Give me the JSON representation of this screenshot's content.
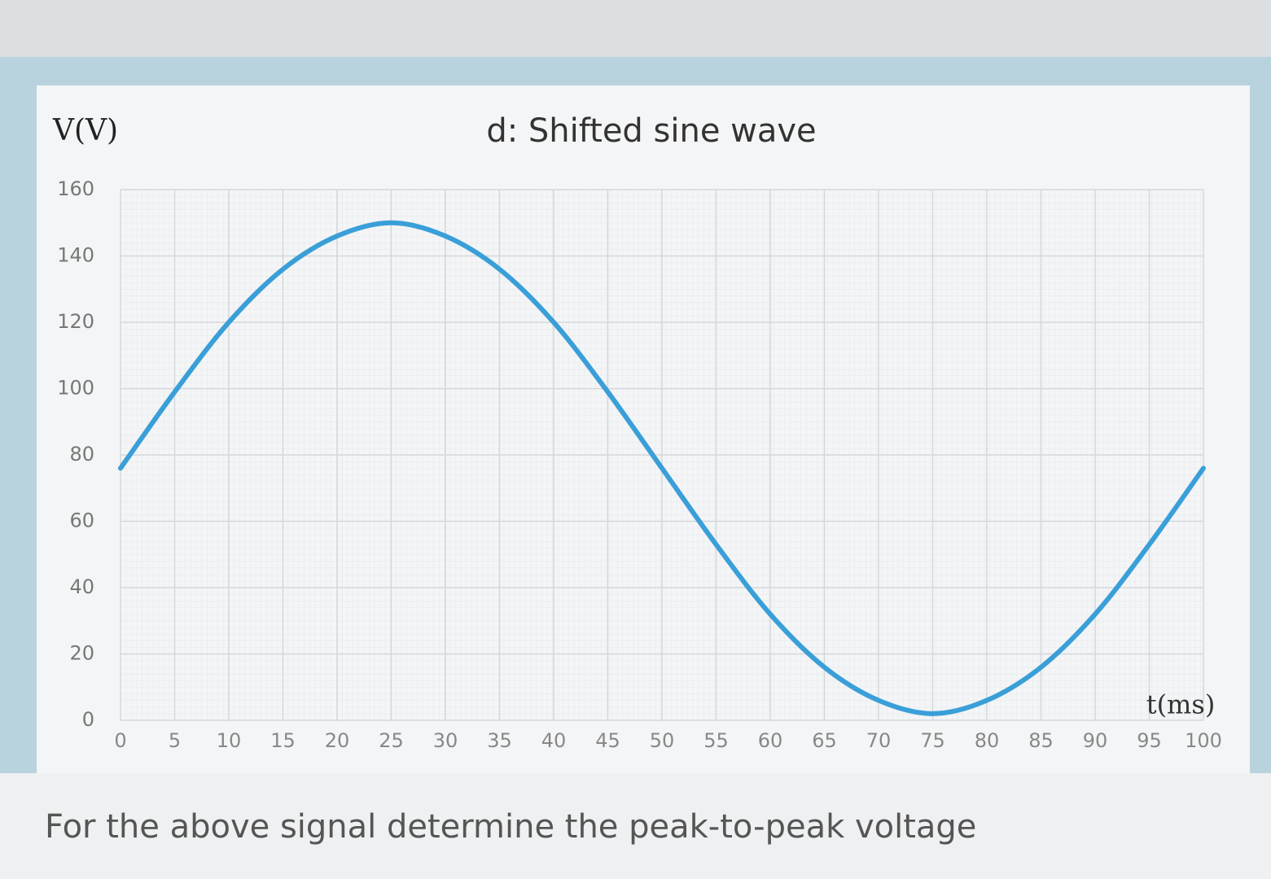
{
  "chart_data": {
    "type": "line",
    "title": "d: Shifted sine wave",
    "y_label": "V(V)",
    "x_label": "t(ms)",
    "x": [
      0,
      5,
      10,
      15,
      20,
      25,
      30,
      35,
      40,
      45,
      50,
      55,
      60,
      65,
      70,
      75,
      80,
      85,
      90,
      95,
      100
    ],
    "series": [
      {
        "color": "#3a9fd8",
        "values": [
          76,
          99,
          120,
          136,
          146,
          150,
          146,
          136,
          120,
          99,
          76,
          53,
          32,
          16,
          6,
          2,
          6,
          16,
          32,
          53,
          76
        ]
      }
    ],
    "xlim": [
      0,
      100
    ],
    "xticks": [
      0,
      5,
      10,
      15,
      20,
      25,
      30,
      35,
      40,
      45,
      50,
      55,
      60,
      65,
      70,
      75,
      80,
      85,
      90,
      95,
      100
    ],
    "ylim": [
      0,
      160
    ],
    "yticks": [
      0,
      20,
      40,
      60,
      80,
      100,
      120,
      140,
      160
    ],
    "grid": true
  },
  "question": "For the above signal determine the peak-to-peak voltage"
}
